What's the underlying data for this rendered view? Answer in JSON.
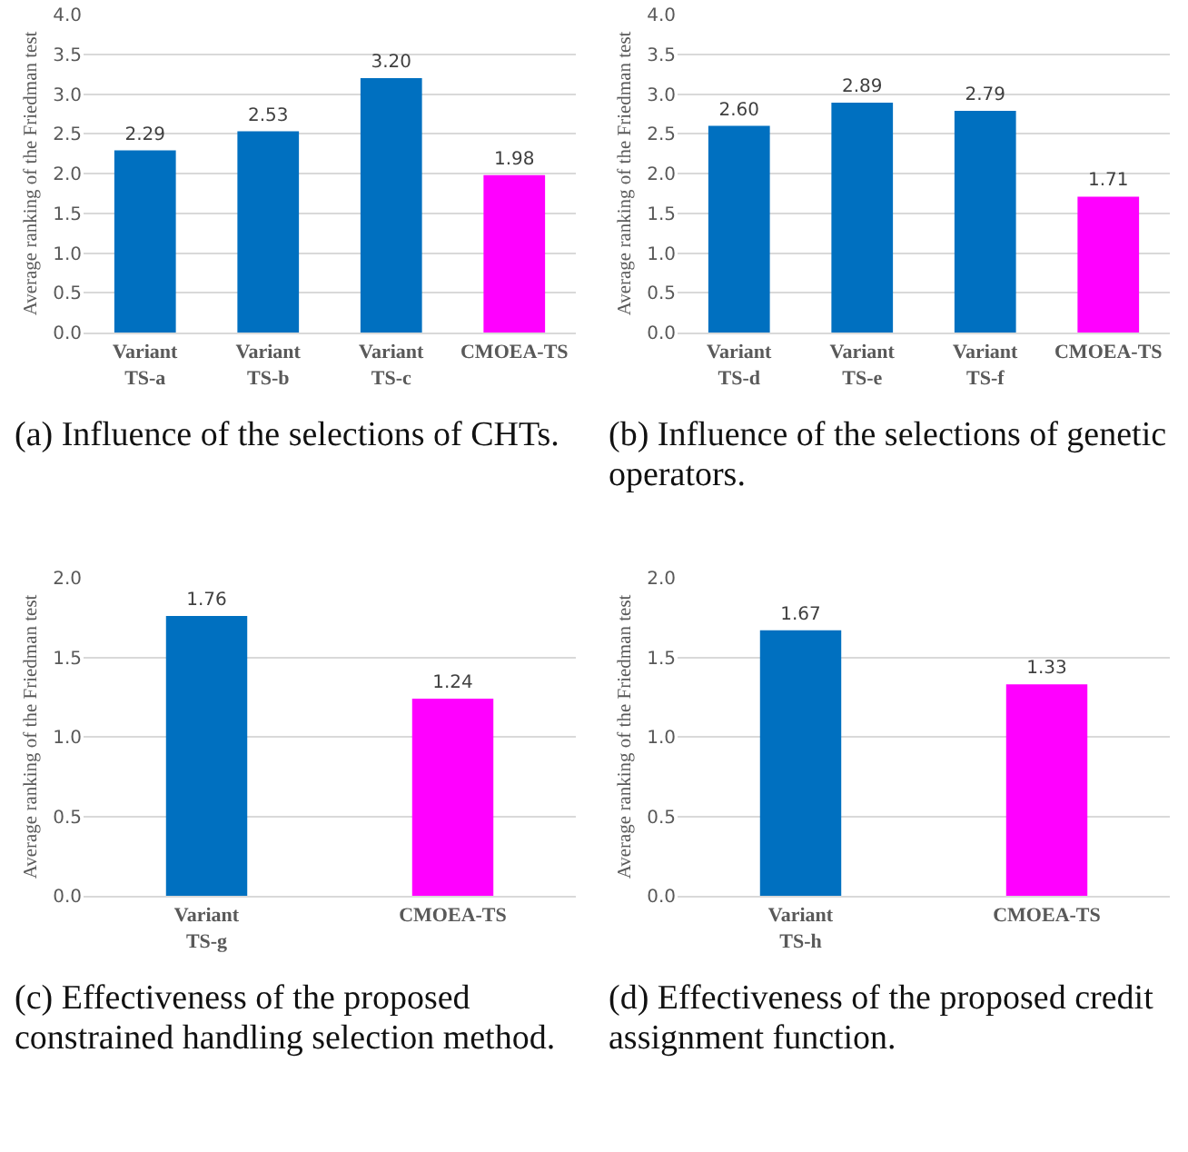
{
  "chart_data": [
    {
      "type": "bar",
      "ylabel": "Average ranking of the Friedman test",
      "categories": [
        "Variant TS-a",
        "Variant TS-b",
        "Variant TS-c",
        "CMOEA-TS"
      ],
      "values": [
        2.29,
        2.53,
        3.2,
        1.98
      ],
      "value_labels": [
        "2.29",
        "2.53",
        "3.20",
        "1.98"
      ],
      "colors": [
        "#0070c0",
        "#0070c0",
        "#0070c0",
        "#ff00ff"
      ],
      "ylim": [
        0,
        4
      ],
      "yticks": [
        {
          "value": 0,
          "label": "0.0"
        },
        {
          "value": 0.5,
          "label": "0.5"
        },
        {
          "value": 1,
          "label": "1.0"
        },
        {
          "value": 1.5,
          "label": "1.5"
        },
        {
          "value": 2,
          "label": "2.0"
        },
        {
          "value": 2.5,
          "label": "2.5"
        },
        {
          "value": 3,
          "label": "3.0"
        },
        {
          "value": 3.5,
          "label": "3.5"
        },
        {
          "value": 4,
          "label": "4.0"
        }
      ],
      "grid": "y",
      "annotations": [
        "(a) Influence of the selections of CHTs."
      ]
    },
    {
      "type": "bar",
      "ylabel": "Average ranking of the Friedman test",
      "categories": [
        "Variant TS-d",
        "Variant TS-e",
        "Variant TS-f",
        "CMOEA-TS"
      ],
      "values": [
        2.6,
        2.89,
        2.79,
        1.71
      ],
      "value_labels": [
        "2.60",
        "2.89",
        "2.79",
        "1.71"
      ],
      "colors": [
        "#0070c0",
        "#0070c0",
        "#0070c0",
        "#ff00ff"
      ],
      "ylim": [
        0,
        4
      ],
      "yticks": [
        {
          "value": 0,
          "label": "0.0"
        },
        {
          "value": 0.5,
          "label": "0.5"
        },
        {
          "value": 1,
          "label": "1.0"
        },
        {
          "value": 1.5,
          "label": "1.5"
        },
        {
          "value": 2,
          "label": "2.0"
        },
        {
          "value": 2.5,
          "label": "2.5"
        },
        {
          "value": 3,
          "label": "3.0"
        },
        {
          "value": 3.5,
          "label": "3.5"
        },
        {
          "value": 4,
          "label": "4.0"
        }
      ],
      "grid": "y",
      "annotations": [
        "(b) Influence of the selections of genetic operators."
      ]
    },
    {
      "type": "bar",
      "ylabel": "Average ranking of the Friedman test",
      "categories": [
        "Variant TS-g",
        "CMOEA-TS"
      ],
      "values": [
        1.76,
        1.24
      ],
      "value_labels": [
        "1.76",
        "1.24"
      ],
      "colors": [
        "#0070c0",
        "#ff00ff"
      ],
      "ylim": [
        0,
        2
      ],
      "yticks": [
        {
          "value": 0,
          "label": "0.0"
        },
        {
          "value": 0.5,
          "label": "0.5"
        },
        {
          "value": 1,
          "label": "1.0"
        },
        {
          "value": 1.5,
          "label": "1.5"
        },
        {
          "value": 2,
          "label": "2.0"
        }
      ],
      "grid": "y",
      "annotations": [
        "(c) Effectiveness of the proposed constrained handling selection method."
      ]
    },
    {
      "type": "bar",
      "ylabel": "Average ranking of the Friedman test",
      "categories": [
        "Variant TS-h",
        "CMOEA-TS"
      ],
      "values": [
        1.67,
        1.33
      ],
      "value_labels": [
        "1.67",
        "1.33"
      ],
      "colors": [
        "#0070c0",
        "#ff00ff"
      ],
      "ylim": [
        0,
        2
      ],
      "yticks": [
        {
          "value": 0,
          "label": "0.0"
        },
        {
          "value": 0.5,
          "label": "0.5"
        },
        {
          "value": 1,
          "label": "1.0"
        },
        {
          "value": 1.5,
          "label": "1.5"
        },
        {
          "value": 2,
          "label": "2.0"
        }
      ],
      "grid": "y",
      "annotations": [
        "(d) Effectiveness of the proposed credit assignment function."
      ]
    }
  ]
}
